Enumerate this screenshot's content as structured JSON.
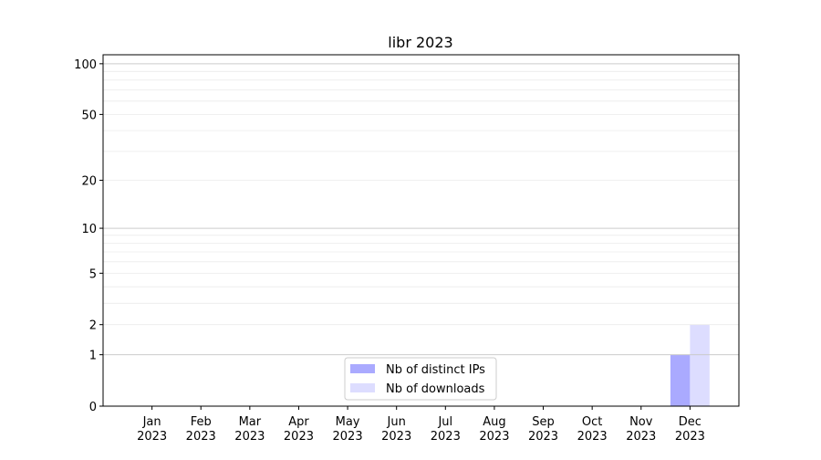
{
  "chart_data": {
    "type": "bar",
    "title": "libr 2023",
    "xlabel": "",
    "ylabel": "",
    "categories": [
      "Jan\n2023",
      "Feb\n2023",
      "Mar\n2023",
      "Apr\n2023",
      "May\n2023",
      "Jun\n2023",
      "Jul\n2023",
      "Aug\n2023",
      "Sep\n2023",
      "Oct\n2023",
      "Nov\n2023",
      "Dec\n2023"
    ],
    "series": [
      {
        "name": "Nb of distinct IPs",
        "color": "#aaaaff",
        "values": [
          0,
          0,
          0,
          0,
          0,
          0,
          0,
          0,
          0,
          0,
          0,
          1
        ]
      },
      {
        "name": "Nb of downloads",
        "color": "#ddddff",
        "values": [
          0,
          0,
          0,
          0,
          0,
          0,
          0,
          0,
          0,
          0,
          0,
          2
        ]
      }
    ],
    "yscale": "log(1+y)",
    "yticks": [
      0,
      1,
      2,
      5,
      10,
      20,
      50,
      100
    ],
    "ylim": [
      0,
      113
    ],
    "grid": true,
    "legend": "lower-center"
  }
}
